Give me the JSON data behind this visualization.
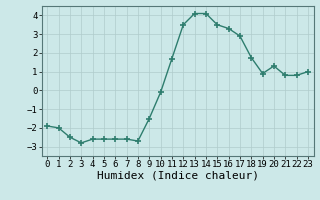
{
  "x": [
    0,
    1,
    2,
    3,
    4,
    5,
    6,
    7,
    8,
    9,
    10,
    11,
    12,
    13,
    14,
    15,
    16,
    17,
    18,
    19,
    20,
    21,
    22,
    23
  ],
  "y": [
    -1.9,
    -2.0,
    -2.5,
    -2.8,
    -2.6,
    -2.6,
    -2.6,
    -2.6,
    -2.7,
    -1.5,
    -0.1,
    1.7,
    3.5,
    4.1,
    4.1,
    3.5,
    3.3,
    2.9,
    1.75,
    0.9,
    1.3,
    0.8,
    0.8,
    1.0
  ],
  "line_color": "#2e7d6e",
  "marker": "+",
  "markersize": 4,
  "markeredgewidth": 1.2,
  "bg_color": "#cce8e8",
  "grid_color": "#b0cccc",
  "xlabel": "Humidex (Indice chaleur)",
  "xlim": [
    -0.5,
    23.5
  ],
  "ylim": [
    -3.5,
    4.5
  ],
  "yticks": [
    -3,
    -2,
    -1,
    0,
    1,
    2,
    3,
    4
  ],
  "xticks": [
    0,
    1,
    2,
    3,
    4,
    5,
    6,
    7,
    8,
    9,
    10,
    11,
    12,
    13,
    14,
    15,
    16,
    17,
    18,
    19,
    20,
    21,
    22,
    23
  ],
  "tick_fontsize": 6.5,
  "xlabel_fontsize": 8,
  "linewidth": 1.0
}
